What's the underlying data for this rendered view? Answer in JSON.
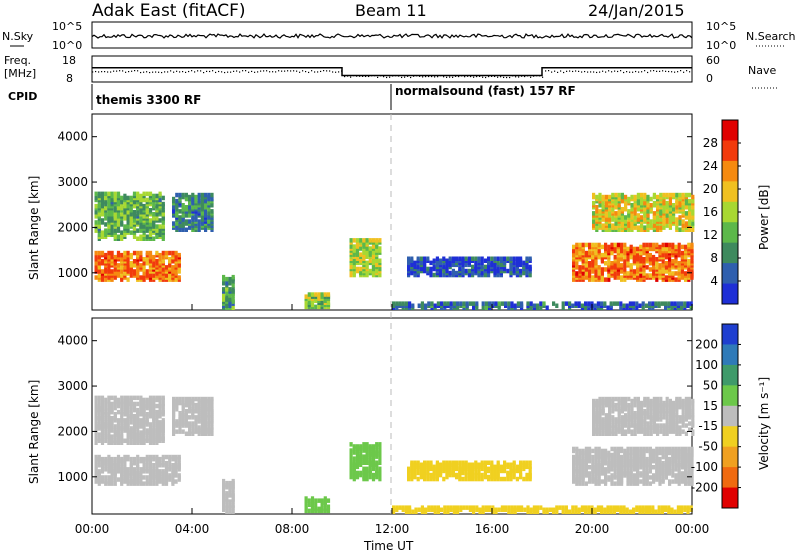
{
  "header": {
    "radar": "Adak East (fitACF)",
    "beam": "Beam 11",
    "date": "24/Jan/2015"
  },
  "nsky_panel": {
    "label": "N.Sky",
    "left_ticks": [
      "10^5",
      "10^0"
    ],
    "right_label": "N.Search",
    "right_ticks": [
      "10^5",
      "10^0"
    ]
  },
  "freq_panel": {
    "label_top": "Freq.",
    "label_unit": "[MHz]",
    "left_ticks": [
      "18",
      "8"
    ],
    "right_label": "Nave",
    "right_ticks": [
      "60",
      "0"
    ],
    "freq_series": [
      {
        "t": 0,
        "mhz": 13.5
      },
      {
        "t": 10,
        "mhz": 13.5
      },
      {
        "t": 10,
        "mhz": 10.5
      },
      {
        "t": 18,
        "mhz": 10.5
      },
      {
        "t": 18,
        "mhz": 13.5
      },
      {
        "t": 24,
        "mhz": 13.5
      }
    ]
  },
  "cpid": {
    "label": "CPID",
    "modes": [
      {
        "start": 0,
        "name": "themis 3300 RF"
      },
      {
        "start": 12,
        "name": "normalsound (fast) 157 RF"
      }
    ]
  },
  "chart_data": [
    {
      "type": "heatmap",
      "parameter": "power",
      "ylabel": "Slant Range [km]",
      "ylim": [
        180,
        4500
      ],
      "yticks": [
        1000,
        2000,
        3000,
        4000
      ],
      "xlim": [
        0,
        24
      ],
      "colorbar_label": "Power [dB]",
      "colorbar_ticks": [
        "4",
        "8",
        "12",
        "16",
        "20",
        "24",
        "28"
      ],
      "colors": [
        "#1e2fd6",
        "#2f5fae",
        "#3e8a5e",
        "#5cb84a",
        "#a8d832",
        "#f0c020",
        "#f58a10",
        "#f23a0c",
        "#e00000"
      ],
      "regions": [
        {
          "t0": 0.1,
          "t1": 3.5,
          "r0": 800,
          "r1": 1400,
          "val": 24
        },
        {
          "t0": 0.1,
          "t1": 2.8,
          "r0": 1700,
          "r1": 2700,
          "val": 12
        },
        {
          "t0": 3.2,
          "t1": 4.8,
          "r0": 1900,
          "r1": 2700,
          "val": 8
        },
        {
          "t0": 5.2,
          "t1": 5.7,
          "r0": 180,
          "r1": 900,
          "val": 10
        },
        {
          "t0": 8.5,
          "t1": 9.4,
          "r0": 200,
          "r1": 500,
          "val": 14
        },
        {
          "t0": 10.3,
          "t1": 11.5,
          "r0": 900,
          "r1": 1700,
          "val": 16
        },
        {
          "t0": 12.6,
          "t1": 17.5,
          "r0": 900,
          "r1": 1300,
          "val": 4
        },
        {
          "t0": 19.2,
          "t1": 24.0,
          "r0": 800,
          "r1": 1600,
          "val": 24
        },
        {
          "t0": 20.0,
          "t1": 24.0,
          "r0": 1900,
          "r1": 2700,
          "val": 18
        },
        {
          "t0": 12.0,
          "t1": 24.0,
          "r0": 180,
          "r1": 300,
          "val": 6
        }
      ]
    },
    {
      "type": "heatmap",
      "parameter": "velocity",
      "ylabel": "Slant Range [km]",
      "ylim": [
        180,
        4500
      ],
      "yticks": [
        1000,
        2000,
        3000,
        4000
      ],
      "xlim": [
        0,
        24
      ],
      "xticks": [
        "00:00",
        "04:00",
        "08:00",
        "12:00",
        "16:00",
        "20:00",
        "00:00"
      ],
      "xlabel": "Time UT",
      "colorbar_label": "Velocity [m s⁻¹]",
      "colorbar_ticks": [
        "200",
        "100",
        "50",
        "15",
        "-15",
        "-50",
        "-100",
        "-200"
      ],
      "colors": [
        "#1f3fcf",
        "#2f7ab8",
        "#3f9a6a",
        "#6cc84a",
        "#bdbdbd",
        "#f0d020",
        "#f0a020",
        "#f06a10",
        "#e00000"
      ],
      "regions": [
        {
          "t0": 0.1,
          "t1": 3.5,
          "r0": 800,
          "r1": 1400,
          "val": 0
        },
        {
          "t0": 0.1,
          "t1": 2.8,
          "r0": 1700,
          "r1": 2700,
          "val": 0
        },
        {
          "t0": 3.2,
          "t1": 4.8,
          "r0": 1900,
          "r1": 2700,
          "val": 0
        },
        {
          "t0": 5.2,
          "t1": 5.7,
          "r0": 180,
          "r1": 900,
          "val": 0
        },
        {
          "t0": 8.5,
          "t1": 9.4,
          "r0": 200,
          "r1": 500,
          "val": 40
        },
        {
          "t0": 10.3,
          "t1": 11.5,
          "r0": 900,
          "r1": 1700,
          "val": 40
        },
        {
          "t0": 12.6,
          "t1": 17.5,
          "r0": 900,
          "r1": 1300,
          "val": -30
        },
        {
          "t0": 19.2,
          "t1": 24.0,
          "r0": 800,
          "r1": 1600,
          "val": 0
        },
        {
          "t0": 20.0,
          "t1": 24.0,
          "r0": 1900,
          "r1": 2700,
          "val": 0
        },
        {
          "t0": 12.0,
          "t1": 24.0,
          "r0": 180,
          "r1": 300,
          "val": -40
        }
      ]
    }
  ]
}
